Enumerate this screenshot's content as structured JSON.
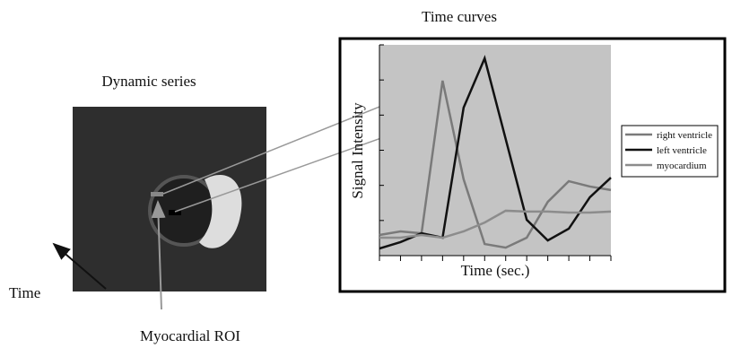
{
  "labels": {
    "dynamic_series": "Dynamic series",
    "time": "Time",
    "roi": "Myocardial ROI"
  },
  "chart_data": {
    "type": "line",
    "title": "Time curves",
    "x_label": "Time (sec.)",
    "y_label": "Signal Intensity",
    "x": [
      0,
      1,
      2,
      3,
      4,
      5,
      6,
      7,
      8,
      9,
      10,
      11
    ],
    "xlim": [
      0,
      11
    ],
    "ylim": [
      0,
      100
    ],
    "series": [
      {
        "name": "right ventricle",
        "color": "#7a7a7a",
        "values": [
          9.8,
          11.5,
          10.6,
          83,
          36.2,
          5.5,
          3.8,
          8.5,
          25.5,
          35.3,
          32.8,
          31.1
        ]
      },
      {
        "name": "left ventricle",
        "color": "#111111",
        "values": [
          3.4,
          6.4,
          10.6,
          8.5,
          70.2,
          93.6,
          55.3,
          17,
          7.2,
          12.8,
          27.7,
          37
        ]
      },
      {
        "name": "myocardium",
        "color": "#8c8c8c",
        "values": [
          8.5,
          8.5,
          9.8,
          8.5,
          11.5,
          15.7,
          21.3,
          20.9,
          20.9,
          20.4,
          20.4,
          20.9
        ]
      }
    ]
  }
}
